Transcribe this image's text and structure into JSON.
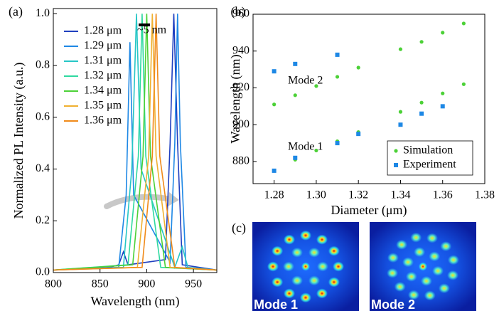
{
  "chart_data": [
    {
      "type": "line",
      "panel": "(a)",
      "xlabel": "Wavelength (nm)",
      "ylabel": "Normalized PL Intensity (a.u.)",
      "annotation": "~5 nm",
      "legend": "upper left",
      "xlim": [
        800,
        975
      ],
      "xticks": [
        800,
        850,
        900,
        950
      ],
      "ylim": [
        0,
        1.02
      ],
      "yticks": [
        {
          "value": 0,
          "label": "0.0"
        },
        0.2,
        0.4,
        0.6,
        0.8,
        {
          "value": 1,
          "label": "1.0"
        }
      ],
      "series": [
        {
          "name": "1.28 μm",
          "color": "#1f3fbf",
          "x": [
            800,
            860,
            870,
            875,
            880,
            920,
            925,
            929,
            933,
            938,
            975
          ],
          "values": [
            0.01,
            0.02,
            0.03,
            0.08,
            0.03,
            0.05,
            0.5,
            1.0,
            0.5,
            0.03,
            0.01
          ]
        },
        {
          "name": "1.29 μm",
          "color": "#1e88e5",
          "x": [
            800,
            870,
            878,
            882,
            886,
            925,
            930,
            933,
            936,
            942,
            975
          ],
          "values": [
            0.01,
            0.02,
            0.3,
            0.89,
            0.3,
            0.04,
            0.5,
            1.0,
            0.5,
            0.02,
            0.01
          ]
        },
        {
          "name": "1.31 μm",
          "color": "#26c6c6",
          "x": [
            800,
            875,
            884,
            889,
            894,
            930,
            938,
            944,
            975
          ],
          "values": [
            0.01,
            0.02,
            0.4,
            1.0,
            0.4,
            0.02,
            0.1,
            0.02,
            0.01
          ]
        },
        {
          "name": "1.32 μm",
          "color": "#2fd9a0",
          "x": [
            800,
            880,
            891,
            895,
            899,
            915,
            975
          ],
          "values": [
            0.01,
            0.03,
            0.45,
            1.0,
            0.45,
            0.02,
            0.01
          ]
        },
        {
          "name": "1.34 μm",
          "color": "#4cd137",
          "x": [
            800,
            885,
            896,
            900,
            904,
            920,
            975
          ],
          "values": [
            0.01,
            0.03,
            0.45,
            1.0,
            0.45,
            0.02,
            0.01
          ]
        },
        {
          "name": "1.35 μm",
          "color": "#f0b030",
          "x": [
            800,
            890,
            902,
            906,
            910,
            925,
            975
          ],
          "values": [
            0.01,
            0.02,
            0.45,
            1.0,
            0.45,
            0.02,
            0.01
          ]
        },
        {
          "name": "1.36 μm",
          "color": "#f08a1a",
          "x": [
            800,
            895,
            906,
            910,
            914,
            930,
            975
          ],
          "values": [
            0.01,
            0.02,
            0.45,
            1.0,
            0.45,
            0.02,
            0.01
          ]
        }
      ]
    },
    {
      "type": "scatter",
      "panel": "(b)",
      "xlabel": "Diameter (μm)",
      "ylabel": "Wavelength (nm)",
      "annotations": [
        "Mode 2",
        "Mode 1"
      ],
      "legend": "lower right",
      "xlim": [
        1.27,
        1.38
      ],
      "xticks": [
        1.28,
        {
          "value": 1.3,
          "label": "1.30"
        },
        1.32,
        1.34,
        1.36,
        1.38
      ],
      "ylim": [
        868,
        960
      ],
      "yticks": [
        880,
        900,
        920,
        940,
        960
      ],
      "series": [
        {
          "name": "Simulation",
          "color": "#4cd137",
          "marker": "circle",
          "x": [
            1.28,
            1.29,
            1.3,
            1.31,
            1.32,
            1.34,
            1.35,
            1.36,
            1.37,
            1.28,
            1.29,
            1.3,
            1.31,
            1.32,
            1.34,
            1.35,
            1.36,
            1.37
          ],
          "values": [
            875,
            881,
            886,
            891,
            896,
            907,
            912,
            917,
            922,
            911,
            916,
            921,
            926,
            931,
            941,
            945,
            950,
            955
          ]
        },
        {
          "name": "Experiment",
          "color": "#1e88e5",
          "marker": "square",
          "x": [
            1.28,
            1.29,
            1.31,
            1.32,
            1.34,
            1.35,
            1.36,
            1.28,
            1.29,
            1.31
          ],
          "values": [
            875,
            882,
            890,
            895,
            900,
            906,
            910,
            929,
            933,
            938
          ]
        }
      ]
    }
  ],
  "mode_images": {
    "panel": "(c)",
    "labels": [
      "Mode 1",
      "Mode 2"
    ]
  }
}
